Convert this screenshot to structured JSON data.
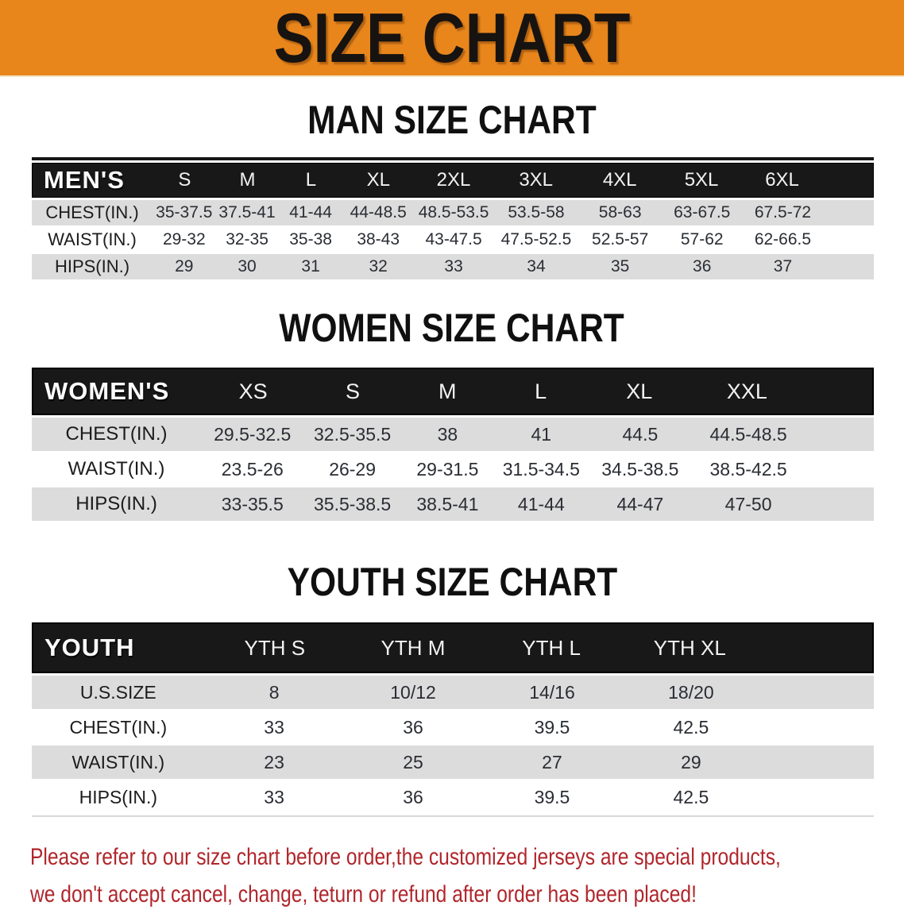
{
  "colors": {
    "banner-bg": "#e8861c",
    "header-bar": "#181818",
    "stripe": "#dcdcdc",
    "footer-red": "#b0262b"
  },
  "banner": {
    "title": "SIZE CHART"
  },
  "men": {
    "heading": "MAN SIZE CHART",
    "corner": "MEN'S",
    "sizes": [
      "S",
      "M",
      "L",
      "XL",
      "2XL",
      "3XL",
      "4XL",
      "5XL",
      "6XL"
    ],
    "rows": [
      {
        "label": "CHEST(IN.)",
        "values": [
          "35-37.5",
          "37.5-41",
          "41-44",
          "44-48.5",
          "48.5-53.5",
          "53.5-58",
          "58-63",
          "63-67.5",
          "67.5-72"
        ]
      },
      {
        "label": "WAIST(IN.)",
        "values": [
          "29-32",
          "32-35",
          "35-38",
          "38-43",
          "43-47.5",
          "47.5-52.5",
          "52.5-57",
          "57-62",
          "62-66.5"
        ]
      },
      {
        "label": "HIPS(IN.)",
        "values": [
          "29",
          "30",
          "31",
          "32",
          "33",
          "34",
          "35",
          "36",
          "37"
        ]
      }
    ]
  },
  "women": {
    "heading": "WOMEN SIZE CHART",
    "corner": "WOMEN'S",
    "sizes": [
      "XS",
      "S",
      "M",
      "L",
      "XL",
      "XXL"
    ],
    "rows": [
      {
        "label": "CHEST(IN.)",
        "values": [
          "29.5-32.5",
          "32.5-35.5",
          "38",
          "41",
          "44.5",
          "44.5-48.5"
        ]
      },
      {
        "label": "WAIST(IN.)",
        "values": [
          "23.5-26",
          "26-29",
          "29-31.5",
          "31.5-34.5",
          "34.5-38.5",
          "38.5-42.5"
        ]
      },
      {
        "label": "HIPS(IN.)",
        "values": [
          "33-35.5",
          "35.5-38.5",
          "38.5-41",
          "41-44",
          "44-47",
          "47-50"
        ]
      }
    ]
  },
  "youth": {
    "heading": "YOUTH SIZE CHART",
    "corner": "YOUTH",
    "sizes": [
      "YTH S",
      "YTH M",
      "YTH L",
      "YTH XL"
    ],
    "rows": [
      {
        "label": "U.S.SIZE",
        "values": [
          "8",
          "10/12",
          "14/16",
          "18/20"
        ]
      },
      {
        "label": "CHEST(IN.)",
        "values": [
          "33",
          "36",
          "39.5",
          "42.5"
        ]
      },
      {
        "label": "WAIST(IN.)",
        "values": [
          "23",
          "25",
          "27",
          "29"
        ]
      },
      {
        "label": "HIPS(IN.)",
        "values": [
          "33",
          "36",
          "39.5",
          "42.5"
        ]
      }
    ]
  },
  "footer": {
    "line1": "Please refer to our size chart before order,the customized jerseys are special products,",
    "line2": "we don't accept cancel, change, teturn or refund after order has been placed!"
  }
}
